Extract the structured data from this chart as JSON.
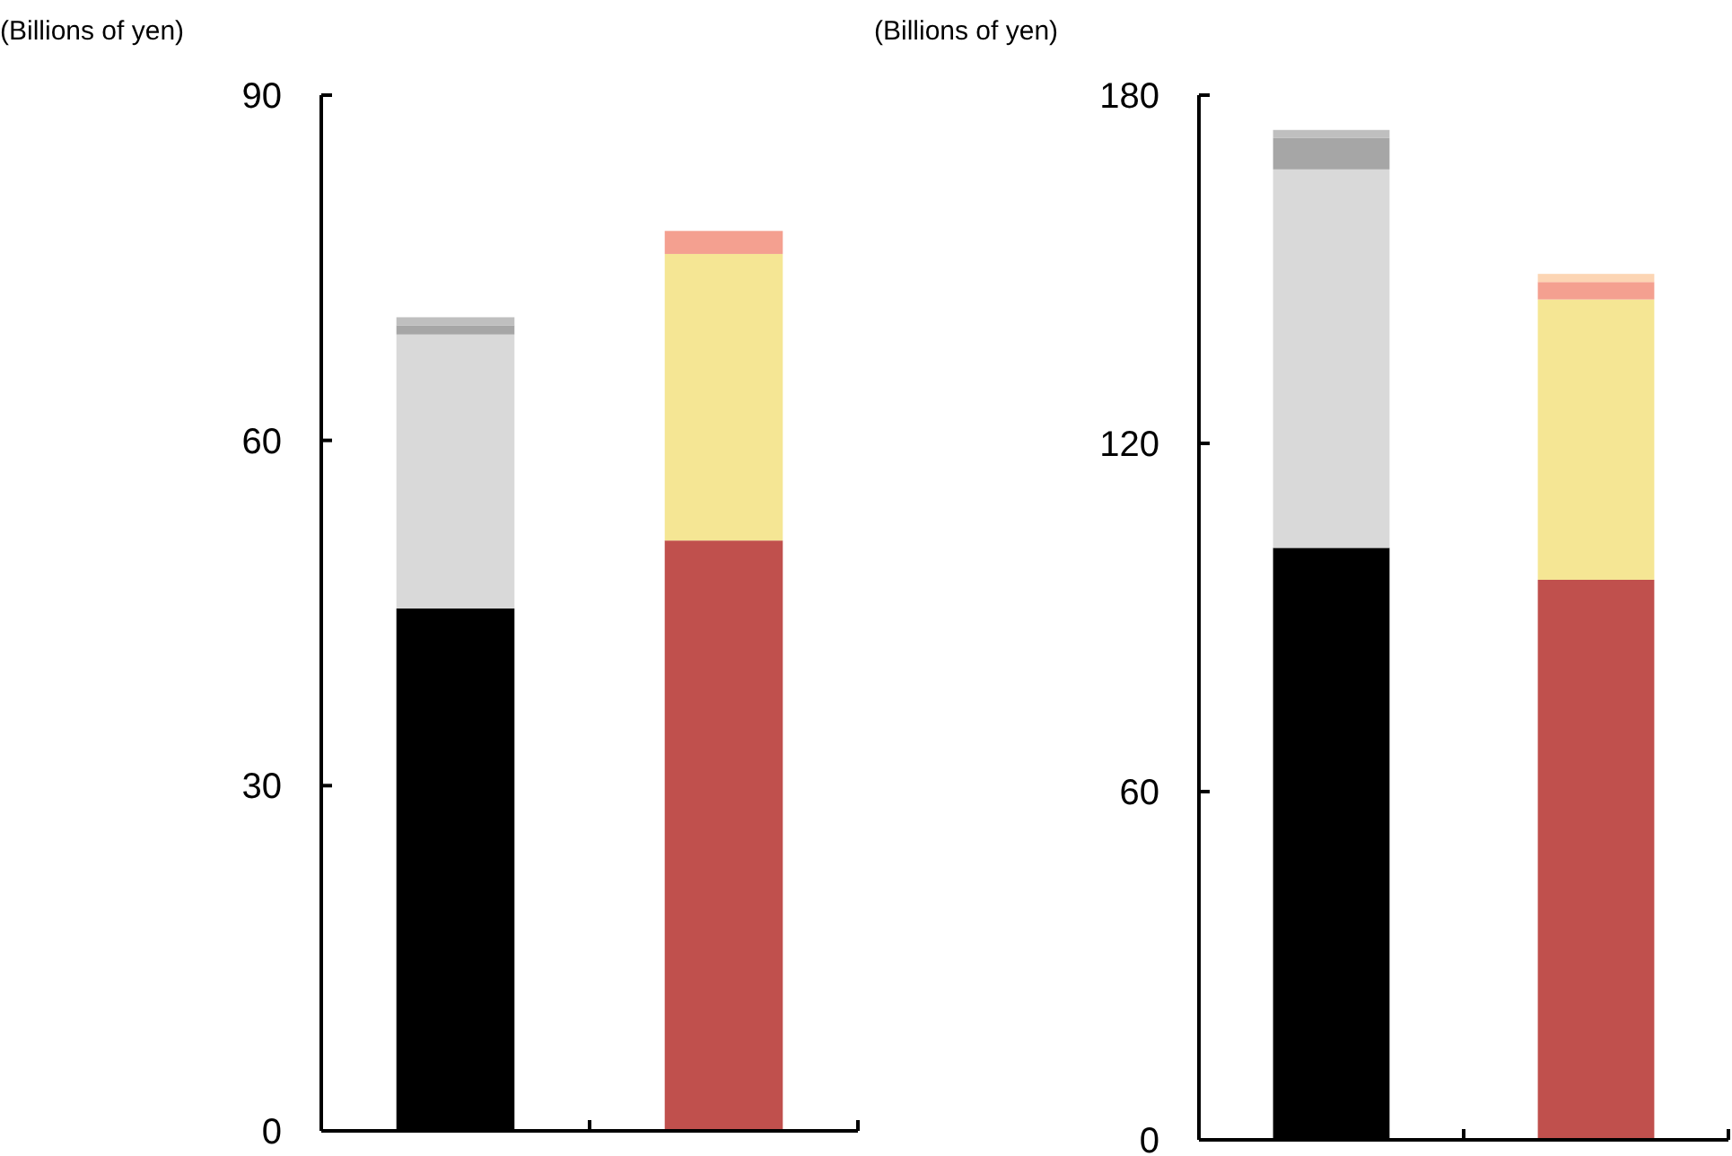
{
  "chart_data": [
    {
      "type": "bar",
      "stacked": true,
      "ylabel": "(Billions of yen)",
      "categories": [
        null,
        null
      ],
      "ylim": [
        0,
        90
      ],
      "yticks": [
        0,
        30,
        60,
        90
      ],
      "series": [
        {
          "colors": [
            "#000000",
            "#c0504d"
          ],
          "values": [
            45.4,
            51.3
          ]
        },
        {
          "colors": [
            "#d9d9d9",
            "#f5e694"
          ],
          "values": [
            23.8,
            24.9
          ]
        },
        {
          "colors": [
            "#a6a6a6",
            "#f4a090"
          ],
          "values": [
            0.8,
            2.0
          ]
        },
        {
          "colors": [
            "#bfbfbf",
            null
          ],
          "values": [
            0.7,
            null
          ]
        }
      ]
    },
    {
      "type": "bar",
      "stacked": true,
      "ylabel": "(Billions of yen)",
      "categories": [
        null,
        null
      ],
      "ylim": [
        0,
        180
      ],
      "yticks": [
        0,
        60,
        120,
        180
      ],
      "series": [
        {
          "colors": [
            "#000000",
            "#c0504d"
          ],
          "values": [
            102.0,
            96.5
          ]
        },
        {
          "colors": [
            "#d9d9d9",
            "#f5e694"
          ],
          "values": [
            65.2,
            48.3
          ]
        },
        {
          "colors": [
            "#a6a6a6",
            "#f4a090"
          ],
          "values": [
            5.4,
            3.0
          ]
        },
        {
          "colors": [
            "#bfbfbf",
            "#fcd5b4"
          ],
          "values": [
            1.4,
            1.4
          ]
        }
      ]
    }
  ]
}
